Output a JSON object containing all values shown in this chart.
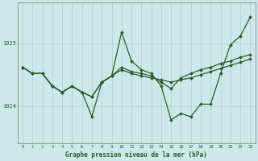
{
  "bg_color": "#cde8e8",
  "line_color": "#2d5a2d",
  "grid_color": "#b0cccc",
  "title": "Graphe pression niveau de la mer (hPa)",
  "ylim": [
    1023.4,
    1025.65
  ],
  "yticks": [
    1024,
    1025
  ],
  "series1_x": [
    0,
    1,
    2,
    3,
    4,
    5,
    6,
    7,
    8,
    9,
    10,
    11,
    12,
    13,
    14,
    15,
    16,
    17,
    18,
    19,
    20,
    21,
    22,
    23
  ],
  "series1_y": [
    1024.62,
    1024.52,
    1024.52,
    1024.32,
    1024.22,
    1024.32,
    1024.22,
    1023.83,
    1024.38,
    1024.48,
    1025.18,
    1024.72,
    1024.58,
    1024.52,
    1024.32,
    1023.78,
    1023.88,
    1023.83,
    1024.03,
    1024.03,
    1024.52,
    1024.98,
    1025.12,
    1025.42
  ],
  "series2_x": [
    0,
    1,
    2,
    3,
    4,
    5,
    6,
    7,
    8,
    9,
    10,
    11,
    12,
    13,
    14,
    15,
    16,
    17,
    18,
    19,
    20,
    21,
    22,
    23
  ],
  "series2_y": [
    1024.62,
    1024.52,
    1024.52,
    1024.32,
    1024.22,
    1024.32,
    1024.22,
    1024.15,
    1024.38,
    1024.48,
    1024.62,
    1024.55,
    1024.52,
    1024.48,
    1024.38,
    1024.28,
    1024.45,
    1024.52,
    1024.58,
    1024.62,
    1024.68,
    1024.72,
    1024.78,
    1024.82
  ],
  "series3_x": [
    0,
    1,
    2,
    3,
    4,
    5,
    6,
    7,
    8,
    9,
    10,
    11,
    12,
    13,
    14,
    15,
    16,
    17,
    18,
    19,
    20,
    21,
    22,
    23
  ],
  "series3_y": [
    1024.62,
    1024.52,
    1024.52,
    1024.32,
    1024.22,
    1024.32,
    1024.22,
    1024.15,
    1024.38,
    1024.48,
    1024.58,
    1024.52,
    1024.48,
    1024.45,
    1024.42,
    1024.38,
    1024.42,
    1024.45,
    1024.5,
    1024.55,
    1024.6,
    1024.65,
    1024.7,
    1024.75
  ]
}
